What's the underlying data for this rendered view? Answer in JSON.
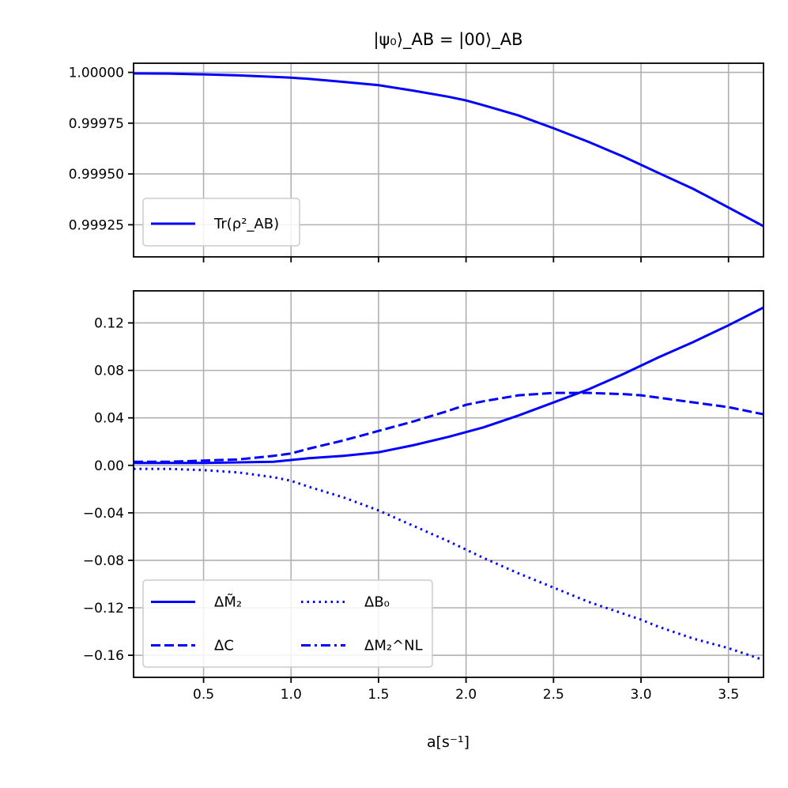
{
  "figure": {
    "title": "|ψ₀⟩_AB = |00⟩_AB",
    "xlabel": "a[s⁻¹]"
  },
  "chart_data": [
    {
      "type": "line",
      "title": "|ψ₀⟩_AB = |00⟩_AB",
      "xlabel": "",
      "ylabel": "",
      "xlim": [
        0.1,
        3.7
      ],
      "ylim": [
        0.999092,
        1.000045
      ],
      "grid": true,
      "legend_position": "lower-left",
      "xticks": [
        0.5,
        1.0,
        1.5,
        2.0,
        2.5,
        3.0,
        3.5
      ],
      "xtick_labels_visible": false,
      "yticks": [
        1.0,
        0.99975,
        0.9995,
        0.99925
      ],
      "ytick_labels": [
        "1.00000",
        "0.99975",
        "0.99950",
        "0.99925"
      ],
      "series": [
        {
          "name": "Tr(ρ²_AB)",
          "color": "#0000ff",
          "linestyle": "solid",
          "x": [
            0.1,
            0.3,
            0.5,
            0.7,
            0.9,
            1.0,
            1.1,
            1.3,
            1.5,
            1.7,
            1.9,
            2.0,
            2.1,
            2.3,
            2.5,
            2.7,
            2.9,
            3.0,
            3.1,
            3.3,
            3.5,
            3.7
          ],
          "y": [
            0.999995,
            0.999994,
            0.99999,
            0.999985,
            0.999978,
            0.999974,
            0.999968,
            0.999953,
            0.999937,
            0.99991,
            0.99988,
            0.999862,
            0.999838,
            0.999788,
            0.999725,
            0.999658,
            0.999585,
            0.999545,
            0.999505,
            0.999426,
            0.999335,
            0.999243
          ]
        }
      ]
    },
    {
      "type": "line",
      "xlabel": "a[s⁻¹]",
      "ylabel": "",
      "xlim": [
        0.1,
        3.7
      ],
      "ylim": [
        -0.1786,
        0.147
      ],
      "grid": true,
      "legend_position": "lower-left",
      "legend_columns": 2,
      "xticks": [
        0.5,
        1.0,
        1.5,
        2.0,
        2.5,
        3.0,
        3.5
      ],
      "xtick_labels": [
        "0.5",
        "1.0",
        "1.5",
        "2.0",
        "2.5",
        "3.0",
        "3.5"
      ],
      "yticks": [
        0.12,
        0.08,
        0.04,
        0.0,
        -0.04,
        -0.08,
        -0.12,
        -0.16
      ],
      "ytick_labels": [
        "0.12",
        "0.08",
        "0.04",
        "0.00",
        "−0.04",
        "−0.08",
        "−0.12",
        "−0.16"
      ],
      "series": [
        {
          "name": "ΔM̃₂",
          "color": "#0000ff",
          "linestyle": "solid",
          "x": [
            0.1,
            0.3,
            0.5,
            0.7,
            0.9,
            1.0,
            1.1,
            1.3,
            1.5,
            1.7,
            1.9,
            2.0,
            2.1,
            2.3,
            2.5,
            2.7,
            2.9,
            3.0,
            3.1,
            3.3,
            3.5,
            3.7
          ],
          "y": [
            0.002,
            0.002,
            0.002,
            0.0025,
            0.003,
            0.0045,
            0.006,
            0.008,
            0.011,
            0.017,
            0.024,
            0.028,
            0.032,
            0.042,
            0.053,
            0.064,
            0.077,
            0.084,
            0.091,
            0.104,
            0.118,
            0.133
          ]
        },
        {
          "name": "ΔC",
          "color": "#0000ff",
          "linestyle": "dashed",
          "x": [
            0.1,
            0.3,
            0.5,
            0.7,
            0.9,
            1.0,
            1.1,
            1.3,
            1.5,
            1.7,
            1.9,
            2.0,
            2.1,
            2.3,
            2.5,
            2.7,
            2.9,
            3.0,
            3.1,
            3.3,
            3.5,
            3.7
          ],
          "y": [
            0.003,
            0.003,
            0.004,
            0.005,
            0.008,
            0.01,
            0.014,
            0.021,
            0.029,
            0.037,
            0.046,
            0.051,
            0.054,
            0.059,
            0.061,
            0.061,
            0.06,
            0.059,
            0.057,
            0.053,
            0.049,
            0.043
          ]
        },
        {
          "name": "ΔB₀",
          "color": "#0000ff",
          "linestyle": "dotted",
          "x": [
            0.1,
            0.3,
            0.5,
            0.7,
            0.9,
            1.0,
            1.1,
            1.3,
            1.5,
            1.7,
            1.9,
            2.0,
            2.1,
            2.3,
            2.5,
            2.7,
            2.9,
            3.0,
            3.1,
            3.3,
            3.5,
            3.7
          ],
          "y": [
            -0.003,
            -0.003,
            -0.004,
            -0.006,
            -0.01,
            -0.013,
            -0.018,
            -0.027,
            -0.038,
            -0.051,
            -0.064,
            -0.071,
            -0.078,
            -0.091,
            -0.103,
            -0.115,
            -0.125,
            -0.13,
            -0.136,
            -0.146,
            -0.154,
            -0.164
          ]
        },
        {
          "name": "ΔM₂^NL",
          "color": "#0000ff",
          "linestyle": "dashdot",
          "x": [],
          "y": []
        }
      ]
    }
  ]
}
